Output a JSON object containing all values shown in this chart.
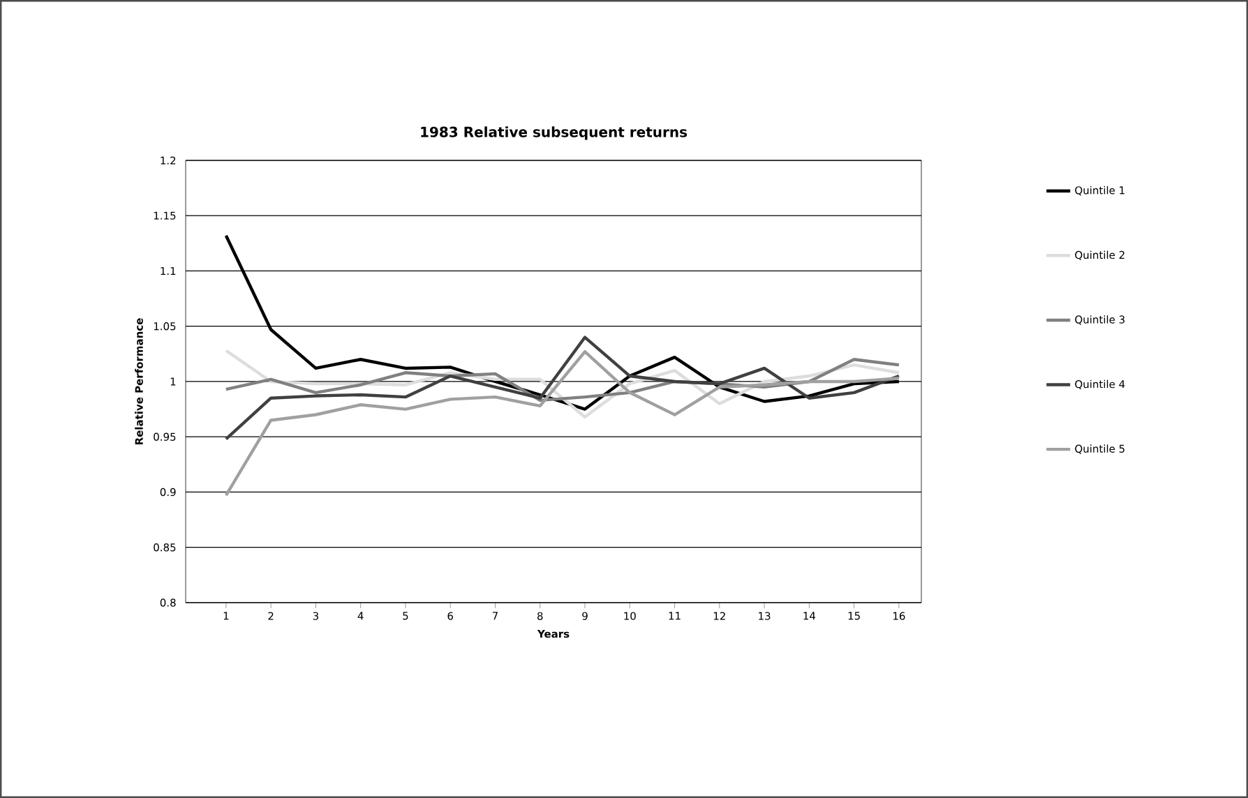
{
  "chart_data": {
    "type": "line",
    "title": "1983 Relative subsequent returns",
    "xlabel": "Years",
    "ylabel": "Relative Performance",
    "categories": [
      "1",
      "2",
      "3",
      "4",
      "5",
      "6",
      "7",
      "8",
      "9",
      "10",
      "11",
      "12",
      "13",
      "14",
      "15",
      "16"
    ],
    "series": [
      {
        "name": "Quintile 1",
        "color": "#000000",
        "values": [
          1.132,
          1.047,
          1.012,
          1.02,
          1.012,
          1.013,
          1.0,
          0.988,
          0.975,
          1.005,
          1.022,
          0.995,
          0.982,
          0.987,
          0.998,
          1.0
        ]
      },
      {
        "name": "Quintile 2",
        "color": "#dddddd",
        "values": [
          1.028,
          1.0,
          0.998,
          0.998,
          0.997,
          1.008,
          1.002,
          1.002,
          0.968,
          0.998,
          1.01,
          0.98,
          1.0,
          1.005,
          1.015,
          1.008
        ]
      },
      {
        "name": "Quintile 3",
        "color": "#808080",
        "values": [
          0.993,
          1.002,
          0.99,
          0.997,
          1.008,
          1.005,
          1.007,
          0.983,
          0.986,
          0.99,
          1.0,
          0.998,
          0.995,
          1.0,
          1.02,
          1.015
        ]
      },
      {
        "name": "Quintile 4",
        "color": "#404040",
        "values": [
          0.948,
          0.985,
          0.987,
          0.988,
          0.986,
          1.005,
          0.995,
          0.985,
          1.04,
          1.005,
          1.0,
          0.998,
          1.012,
          0.985,
          0.99,
          1.005
        ]
      },
      {
        "name": "Quintile 5",
        "color": "#a0a0a0",
        "values": [
          0.897,
          0.965,
          0.97,
          0.979,
          0.975,
          0.984,
          0.986,
          0.978,
          1.027,
          0.99,
          0.97,
          0.995,
          0.997,
          1.0,
          1.0,
          1.003
        ]
      }
    ],
    "ylim": [
      0.8,
      1.2
    ],
    "yticks": [
      0.8,
      0.85,
      0.9,
      0.95,
      1,
      1.05,
      1.1,
      1.15,
      1.2
    ],
    "grid": "y",
    "legend": "right",
    "marker": "none",
    "line_style": "solid"
  }
}
